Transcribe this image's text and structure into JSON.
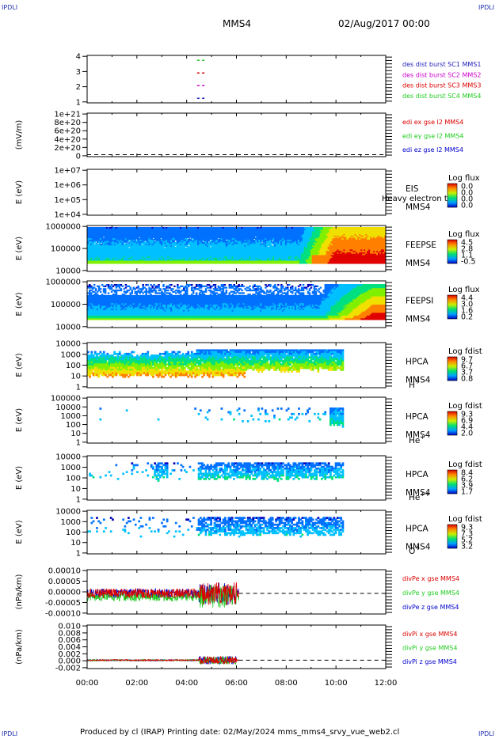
{
  "corners": {
    "tl": "IPDLI",
    "tr": "IPDLI",
    "bl": "IPDLI",
    "br": "IPDLI"
  },
  "header": {
    "spacecraft": "MMS4",
    "datetime": "02/Aug/2017 00:00"
  },
  "footer": {
    "text": "Produced by cl (IRAP)   Printing date: 02/May/2024   mms_mms4_srvy_vue_web2.cl"
  },
  "xaxis": {
    "ticks": [
      "00:00",
      "02:00",
      "04:00",
      "06:00",
      "08:00",
      "10:00",
      "12:00"
    ],
    "range_hours": [
      0,
      12
    ]
  },
  "colors": {
    "red": "#dd0000",
    "green": "#22cc22",
    "blue": "#0000cc",
    "magenta": "#cc00cc",
    "dashed": "#000000"
  },
  "chart_data": [
    {
      "type": "scatter",
      "id": "burst",
      "yticks": [
        "4",
        "3",
        "2",
        "1"
      ],
      "ylabel": "",
      "series": [
        {
          "name": "des dist burst SC1 MMS1",
          "color": "#2222bb",
          "y": 1,
          "x": [
            4.42,
            4.62
          ]
        },
        {
          "name": "des dist burst SC2 MMS2",
          "color": "#cc00cc",
          "y": 2,
          "x": [
            4.42,
            4.62
          ]
        },
        {
          "name": "des dist burst SC3 MMS3",
          "color": "#dd0000",
          "y": 3,
          "x": [
            4.42,
            4.62
          ]
        },
        {
          "name": "des dist burst SC4 MMS4",
          "color": "#22cc22",
          "y": 4,
          "x": [
            4.42,
            4.62
          ]
        }
      ]
    },
    {
      "type": "line",
      "id": "edi",
      "ylabel": "(mV/m)",
      "yticks": [
        "1e+21",
        "8e+20",
        "6e+20",
        "4e+20",
        "2e+20",
        "0"
      ],
      "series": [
        {
          "name": "edi ex gse l2 MMS4",
          "color": "#dd0000"
        },
        {
          "name": "edi ey gse l2 MMS4",
          "color": "#22cc22"
        },
        {
          "name": "edi ez gse l2 MMS4",
          "color": "#0000cc"
        }
      ]
    },
    {
      "type": "heatmap",
      "id": "eis",
      "ylabel": "E (eV)",
      "yticks": [
        "1e+07",
        "1e+06",
        "1e+05",
        "1e+04"
      ],
      "labels": [
        "EIS",
        "MMS4"
      ],
      "overlay": "Heavy electron to",
      "colorbar": {
        "title": "Log flux",
        "ticks": [
          "0.0",
          "0.0",
          "0.0",
          "0.0"
        ]
      }
    },
    {
      "type": "heatmap",
      "id": "feepse",
      "ylabel": "E (eV)",
      "yticks": [
        "1000000",
        "100000",
        "10000"
      ],
      "labels": [
        "FEEPSE",
        "MMS4"
      ],
      "colorbar": {
        "title": "Log flux",
        "ticks": [
          "4.5",
          "2.8",
          "1.1",
          "-0.5"
        ]
      }
    },
    {
      "type": "heatmap",
      "id": "feepsi",
      "ylabel": "E (eV)",
      "yticks": [
        "1000000",
        "100000",
        "10000"
      ],
      "labels": [
        "FEEPSI",
        "MMS4"
      ],
      "colorbar": {
        "title": "Log flux",
        "ticks": [
          "4.4",
          "3.0",
          "1.6",
          "0.2"
        ]
      }
    },
    {
      "type": "heatmap",
      "id": "hpca_h",
      "ylabel": "E (eV)",
      "yticks": [
        "10000",
        "1000",
        "100",
        "10",
        "1"
      ],
      "labels": [
        "HPCA",
        "MMS4"
      ],
      "species": "H",
      "species_sup": "+",
      "colorbar": {
        "title": "Log fdist",
        "ticks": [
          "9.7",
          "6.7",
          "3.7",
          "0.8"
        ]
      }
    },
    {
      "type": "heatmap",
      "id": "hpca_he",
      "ylabel": "E (eV)",
      "yticks": [
        "100000",
        "10000",
        "1000",
        "100",
        "10",
        "1"
      ],
      "labels": [
        "HPCA",
        "MMS4"
      ],
      "species": "He",
      "species_sup": "+",
      "colorbar": {
        "title": "Log fdist",
        "ticks": [
          "9.3",
          "6.9",
          "4.4",
          "2.0"
        ]
      }
    },
    {
      "type": "heatmap",
      "id": "hpca_hepp",
      "ylabel": "E (eV)",
      "yticks": [
        "10000",
        "1000",
        "100",
        "10",
        "1"
      ],
      "labels": [
        "HPCA",
        "MMS4"
      ],
      "species": "He",
      "species_sup": "++",
      "colorbar": {
        "title": "Log fdist",
        "ticks": [
          "8.4",
          "6.2",
          "3.9",
          "1.7"
        ]
      }
    },
    {
      "type": "heatmap",
      "id": "hpca_o",
      "ylabel": "E (eV)",
      "yticks": [
        "10000",
        "1000",
        "100",
        "10",
        "1"
      ],
      "labels": [
        "HPCA",
        "MMS4"
      ],
      "species": "O",
      "species_sup": "+",
      "colorbar": {
        "title": "Log fdist",
        "ticks": [
          "9.3",
          "7.3",
          "5.2",
          "3.2"
        ]
      }
    },
    {
      "type": "line",
      "id": "divpe",
      "ylabel": "(nPa/km)",
      "yticks": [
        "0.00010",
        "0.00005",
        "0.00000",
        "-0.00005",
        "-0.00010"
      ],
      "ylim": [
        -0.00013,
        0.00015
      ],
      "series": [
        {
          "name": "divPe x gse MMS4",
          "color": "#dd0000"
        },
        {
          "name": "divPe y gse MMS4",
          "color": "#22cc22"
        },
        {
          "name": "divPe z gse MMS4",
          "color": "#0000cc"
        }
      ]
    },
    {
      "type": "line",
      "id": "divpi",
      "ylabel": "(nPa/km)",
      "yticks": [
        "0.010",
        "0.008",
        "0.006",
        "0.004",
        "0.002",
        "0.000",
        "-0.002"
      ],
      "ylim": [
        -0.0025,
        0.0105
      ],
      "series": [
        {
          "name": "divPi x gse MMS4",
          "color": "#dd0000"
        },
        {
          "name": "divPi y gse MMS4",
          "color": "#22cc22"
        },
        {
          "name": "divPi z gse MMS4",
          "color": "#0000cc"
        }
      ]
    }
  ]
}
